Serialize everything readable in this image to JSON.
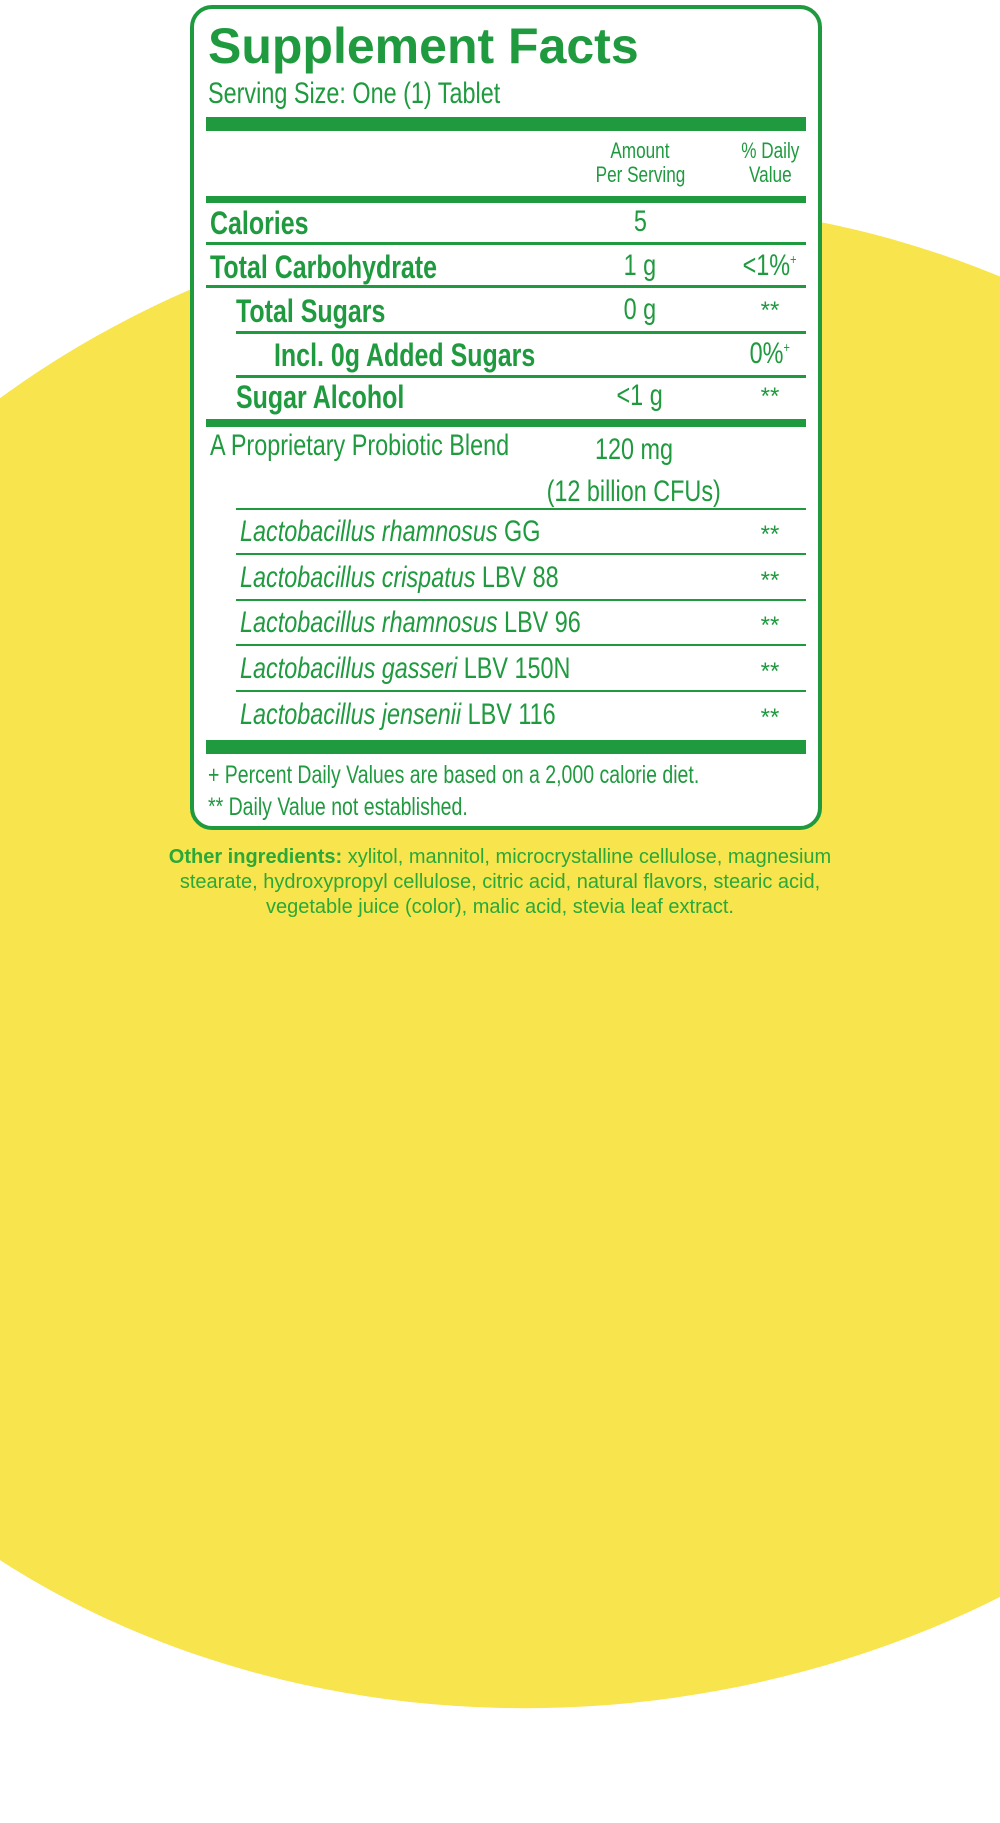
{
  "colors": {
    "green": "#1f9a3f",
    "yellow": "#f8e44c"
  },
  "title": "Supplement Facts",
  "serving_size": "Serving Size: One (1) Tablet",
  "columns": {
    "amount_line1": "Amount",
    "amount_line2": "Per Serving",
    "dv_line1": "% Daily",
    "dv_line2": "Value"
  },
  "rows": [
    {
      "name": "Calories",
      "amount": "5",
      "dv": ""
    },
    {
      "name": "Total Carbohydrate",
      "amount": "1 g",
      "dv": "<1%",
      "dv_mark": "+"
    },
    {
      "name": "Total Sugars",
      "amount": "0 g",
      "dv": "**"
    },
    {
      "name": "Incl. 0g Added Sugars",
      "amount": "",
      "dv": "0%",
      "dv_mark": "+"
    },
    {
      "name": "Sugar Alcohol",
      "amount": "<1 g",
      "dv": "**"
    }
  ],
  "blend": {
    "name": "A Proprietary Probiotic Blend",
    "amount": "120 mg",
    "amount_note": "(12 billion CFUs)"
  },
  "strains": [
    {
      "species": "Lactobacillus rhamnosus",
      "strain": "GG",
      "dv": "**"
    },
    {
      "species": "Lactobacillus crispatus",
      "strain": "LBV 88",
      "dv": "**"
    },
    {
      "species": "Lactobacillus rhamnosus",
      "strain": "LBV 96",
      "dv": "**"
    },
    {
      "species": "Lactobacillus gasseri",
      "strain": "LBV 150N",
      "dv": "**"
    },
    {
      "species": "Lactobacillus jensenii",
      "strain": "LBV 116",
      "dv": "**"
    }
  ],
  "footnotes": [
    "+  Percent Daily Values are based on a 2,000 calorie diet.",
    "** Daily Value not established."
  ],
  "other_ingredients": {
    "label": "Other ingredients:",
    "line1": "xylitol, mannitol, microcrystalline cellulose, magnesium",
    "line2": "stearate, hydroxypropyl cellulose, citric acid, natural flavors, stearic acid,",
    "line3": "vegetable juice (color), malic acid, stevia leaf extract."
  }
}
